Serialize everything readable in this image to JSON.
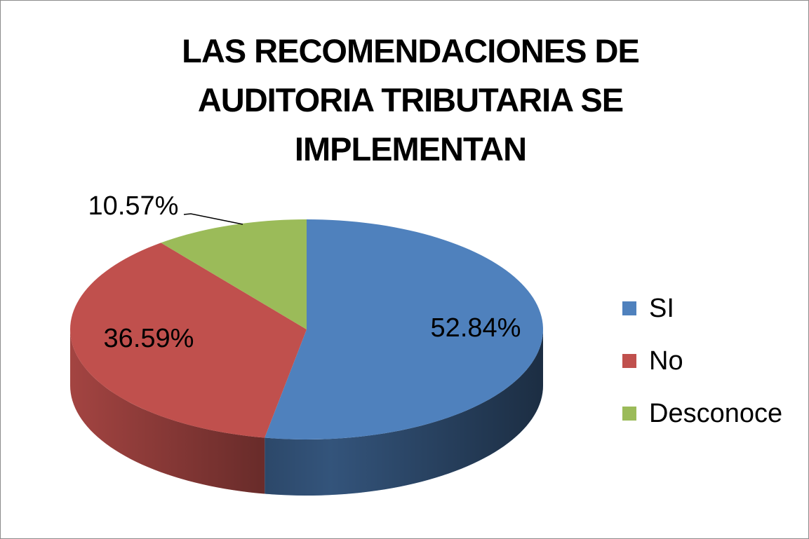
{
  "chart_data": {
    "type": "pie3d",
    "title": "LAS RECOMENDACIONES DE AUDITORIA TRIBUTARIA SE IMPLEMENTAN",
    "categories": [
      "SI",
      "No",
      "Desconoce"
    ],
    "values": [
      52.84,
      36.59,
      10.57
    ],
    "value_labels": [
      "52.84%",
      "36.59%",
      "10.57%"
    ],
    "colors": [
      "#4f81bd",
      "#c0504d",
      "#9bbb59"
    ],
    "legend": "right"
  }
}
